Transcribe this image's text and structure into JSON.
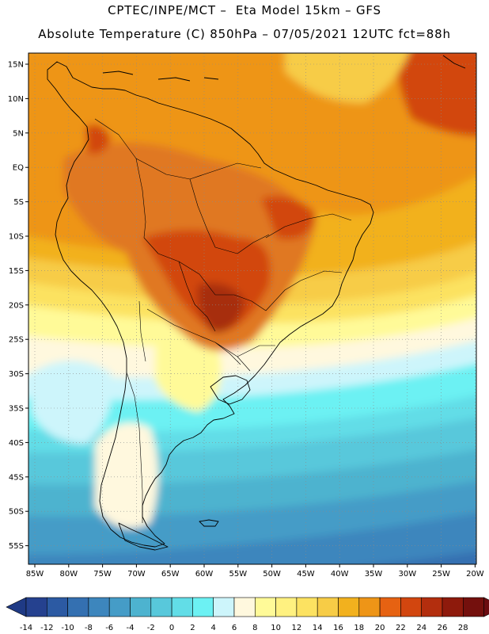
{
  "title": {
    "line1": "CPTEC/INPE/MCT –  Eta Model 15km – GFS",
    "line2": "Absolute Temperature (C) 850hPa – 07/05/2021 12UTC fct=88h"
  },
  "axes": {
    "lat_labels": [
      "15N",
      "10N",
      "5N",
      "EQ",
      "5S",
      "10S",
      "15S",
      "20S",
      "25S",
      "30S",
      "35S",
      "40S",
      "45S",
      "50S",
      "55S"
    ],
    "lon_labels": [
      "85W",
      "80W",
      "75W",
      "70W",
      "65W",
      "60W",
      "55W",
      "50W",
      "45W",
      "40W",
      "35W",
      "30W",
      "25W",
      "20W"
    ]
  },
  "colorbar": {
    "tick_labels": [
      "-14",
      "-12",
      "-10",
      "-8",
      "-6",
      "-4",
      "-2",
      "0",
      "2",
      "4",
      "6",
      "8",
      "10",
      "12",
      "14",
      "16",
      "18",
      "20",
      "22",
      "24",
      "26",
      "28"
    ],
    "colors": [
      "#25418f",
      "#2c5aa3",
      "#3470b1",
      "#3d86bd",
      "#459cc7",
      "#4db3cf",
      "#58c8db",
      "#62dde7",
      "#6cf1f3",
      "#cdf5fb",
      "#fff8de",
      "#fffa98",
      "#fff180",
      "#fce261",
      "#f7cc46",
      "#f2b11e",
      "#ee9517",
      "#e66212",
      "#d2460f",
      "#b32e0e",
      "#8e1a0c",
      "#74100d"
    ],
    "under_color": "#1f3a85",
    "over_color": "#6b0c10"
  },
  "background_color": "#ffffff",
  "field_colors": {
    "deep": "#74100d",
    "hot": "#d2460f",
    "warm_orange": "#e07820",
    "orange": "#ee9517",
    "amber": "#f2b11e",
    "gold": "#f7cc46",
    "yellow": "#fce261",
    "light_yellow": "#fffa98",
    "cream": "#fff8de",
    "pale_cyan": "#cdf5fb",
    "cyan": "#6cf1f3",
    "aqua": "#62dde7",
    "sky": "#58c8db",
    "teal": "#4db3cf",
    "blue": "#459cc7",
    "dark_blue": "#3d86bd",
    "navy": "#3470b1"
  },
  "coastline_color": "#000000"
}
